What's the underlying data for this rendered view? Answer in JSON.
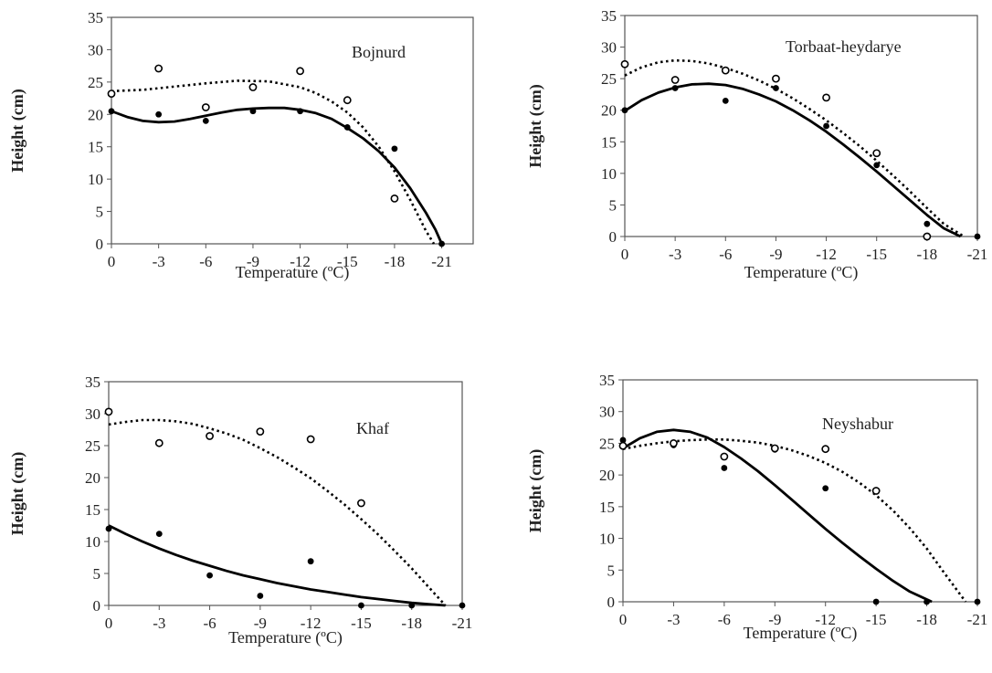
{
  "figure": {
    "xtick_labels": [
      "0",
      "-3",
      "-6",
      "-9",
      "-12",
      "-15",
      "-18",
      "-21"
    ],
    "ytick_labels": [
      "0",
      "5",
      "10",
      "15",
      "20",
      "25",
      "30",
      "35"
    ]
  },
  "chart_data": [
    {
      "type": "scatter",
      "title": "Bojnurd",
      "xlabel": "Temperature (ºC)",
      "ylabel": "Height  (cm)",
      "xlim": [
        0,
        -23
      ],
      "ylim": [
        0,
        35
      ],
      "xticks": [
        0,
        -3,
        -6,
        -9,
        -12,
        -15,
        -18,
        -21
      ],
      "yticks": [
        0,
        5,
        10,
        15,
        20,
        25,
        30,
        35
      ],
      "series": [
        {
          "marker": "filled",
          "line": "solid",
          "points": [
            [
              0,
              20.5
            ],
            [
              -3,
              20
            ],
            [
              -6,
              19
            ],
            [
              -9,
              20.5
            ],
            [
              -12,
              20.5
            ],
            [
              -15,
              18
            ],
            [
              -18,
              14.7
            ],
            [
              -21,
              0
            ]
          ],
          "fit": [
            [
              0,
              20.5
            ],
            [
              -1,
              19.6
            ],
            [
              -2,
              19
            ],
            [
              -3,
              18.8
            ],
            [
              -4,
              18.9
            ],
            [
              -5,
              19.3
            ],
            [
              -6,
              19.8
            ],
            [
              -7,
              20.3
            ],
            [
              -8,
              20.7
            ],
            [
              -9,
              20.9
            ],
            [
              -10,
              21
            ],
            [
              -11,
              21
            ],
            [
              -12,
              20.7
            ],
            [
              -13,
              20.2
            ],
            [
              -14,
              19.3
            ],
            [
              -15,
              17.9
            ],
            [
              -16,
              16.3
            ],
            [
              -17,
              14.3
            ],
            [
              -18,
              11.8
            ],
            [
              -19,
              8.6
            ],
            [
              -20,
              4.8
            ],
            [
              -20.6,
              2.2
            ],
            [
              -21,
              0
            ]
          ]
        },
        {
          "marker": "open",
          "line": "dotted",
          "points": [
            [
              0,
              23.2
            ],
            [
              -3,
              27.1
            ],
            [
              -6,
              21.1
            ],
            [
              -9,
              24.2
            ],
            [
              -12,
              26.7
            ],
            [
              -15,
              22.2
            ],
            [
              -18,
              7
            ]
          ],
          "fit": [
            [
              0,
              23.6
            ],
            [
              -2,
              23.8
            ],
            [
              -4,
              24.3
            ],
            [
              -6,
              24.8
            ],
            [
              -8,
              25.2
            ],
            [
              -10,
              25.1
            ],
            [
              -12,
              24.2
            ],
            [
              -13,
              23.3
            ],
            [
              -14,
              22
            ],
            [
              -15,
              20.3
            ],
            [
              -16,
              18
            ],
            [
              -17,
              15
            ],
            [
              -18,
              11.2
            ],
            [
              -19,
              6.8
            ],
            [
              -20,
              2
            ],
            [
              -20.5,
              0
            ]
          ]
        }
      ]
    },
    {
      "type": "scatter",
      "title": "Torbaat-heydarye",
      "xlabel": "Temperature (ºC)",
      "ylabel": "Height  (cm)",
      "xlim": [
        0,
        -21
      ],
      "ylim": [
        0,
        35
      ],
      "xticks": [
        0,
        -3,
        -6,
        -9,
        -12,
        -15,
        -18,
        -21
      ],
      "yticks": [
        0,
        5,
        10,
        15,
        20,
        25,
        30,
        35
      ],
      "series": [
        {
          "marker": "filled",
          "line": "solid",
          "points": [
            [
              0,
              20
            ],
            [
              -3,
              23.5
            ],
            [
              -6,
              21.5
            ],
            [
              -9,
              23.5
            ],
            [
              -12,
              17.5
            ],
            [
              -15,
              11.3
            ],
            [
              -18,
              2
            ],
            [
              -21,
              0
            ]
          ],
          "fit": [
            [
              0,
              19.9
            ],
            [
              -1,
              21.6
            ],
            [
              -2,
              22.8
            ],
            [
              -3,
              23.6
            ],
            [
              -4,
              24.1
            ],
            [
              -5,
              24.2
            ],
            [
              -6,
              24
            ],
            [
              -7,
              23.4
            ],
            [
              -8,
              22.5
            ],
            [
              -9,
              21.4
            ],
            [
              -10,
              20
            ],
            [
              -11,
              18.4
            ],
            [
              -12,
              16.6
            ],
            [
              -13,
              14.6
            ],
            [
              -14,
              12.5
            ],
            [
              -15,
              10.3
            ],
            [
              -16,
              8
            ],
            [
              -17,
              5.7
            ],
            [
              -18,
              3.4
            ],
            [
              -19,
              1.3
            ],
            [
              -20,
              0
            ]
          ]
        },
        {
          "marker": "open",
          "line": "dotted",
          "points": [
            [
              0,
              27.3
            ],
            [
              -3,
              24.8
            ],
            [
              -6,
              26.3
            ],
            [
              -9,
              25
            ],
            [
              -12,
              22
            ],
            [
              -15,
              13.2
            ],
            [
              -18,
              0
            ]
          ],
          "fit": [
            [
              0,
              25.5
            ],
            [
              -1,
              26.8
            ],
            [
              -2,
              27.6
            ],
            [
              -3,
              27.9
            ],
            [
              -4,
              27.8
            ],
            [
              -5,
              27.4
            ],
            [
              -6,
              26.7
            ],
            [
              -7,
              25.8
            ],
            [
              -8,
              24.7
            ],
            [
              -9,
              23.4
            ],
            [
              -10,
              21.9
            ],
            [
              -11,
              20.2
            ],
            [
              -12,
              18.4
            ],
            [
              -13,
              16.4
            ],
            [
              -14,
              14.3
            ],
            [
              -15,
              12
            ],
            [
              -16,
              9.6
            ],
            [
              -17,
              7.1
            ],
            [
              -18,
              4.5
            ],
            [
              -19,
              2
            ],
            [
              -20.2,
              0
            ]
          ]
        }
      ]
    },
    {
      "type": "scatter",
      "title": "Khaf",
      "xlabel": "Temperature (ºC)",
      "ylabel": "Height  (cm)",
      "xlim": [
        0,
        -21
      ],
      "ylim": [
        0,
        35
      ],
      "xticks": [
        0,
        -3,
        -6,
        -9,
        -12,
        -15,
        -18,
        -21
      ],
      "yticks": [
        0,
        5,
        10,
        15,
        20,
        25,
        30,
        35
      ],
      "series": [
        {
          "marker": "filled",
          "line": "solid",
          "points": [
            [
              0,
              12
            ],
            [
              -3,
              11.2
            ],
            [
              -6,
              4.7
            ],
            [
              -9,
              1.5
            ],
            [
              -12,
              6.9
            ],
            [
              -15,
              0
            ],
            [
              -18,
              0
            ],
            [
              -21,
              0
            ]
          ],
          "fit": [
            [
              0,
              12.5
            ],
            [
              -1,
              11.2
            ],
            [
              -2,
              10
            ],
            [
              -3,
              8.9
            ],
            [
              -4,
              7.9
            ],
            [
              -5,
              7
            ],
            [
              -6,
              6.2
            ],
            [
              -7,
              5.4
            ],
            [
              -8,
              4.7
            ],
            [
              -9,
              4.1
            ],
            [
              -10,
              3.5
            ],
            [
              -11,
              3
            ],
            [
              -12,
              2.5
            ],
            [
              -13,
              2.1
            ],
            [
              -14,
              1.7
            ],
            [
              -15,
              1.3
            ],
            [
              -16,
              1
            ],
            [
              -17,
              0.7
            ],
            [
              -18,
              0.4
            ],
            [
              -19,
              0.2
            ],
            [
              -20,
              0
            ]
          ]
        },
        {
          "marker": "open",
          "line": "dotted",
          "points": [
            [
              0,
              30.3
            ],
            [
              -3,
              25.4
            ],
            [
              -6,
              26.5
            ],
            [
              -9,
              27.2
            ],
            [
              -12,
              26
            ],
            [
              -15,
              16
            ]
          ],
          "fit": [
            [
              0,
              28.3
            ],
            [
              -1,
              28.7
            ],
            [
              -2,
              29
            ],
            [
              -3,
              29
            ],
            [
              -4,
              28.8
            ],
            [
              -5,
              28.4
            ],
            [
              -6,
              27.7
            ],
            [
              -7,
              26.9
            ],
            [
              -8,
              25.9
            ],
            [
              -9,
              24.6
            ],
            [
              -10,
              23.2
            ],
            [
              -11,
              21.6
            ],
            [
              -12,
              19.9
            ],
            [
              -13,
              17.9
            ],
            [
              -14,
              15.8
            ],
            [
              -15,
              13.5
            ],
            [
              -16,
              11.1
            ],
            [
              -17,
              8.5
            ],
            [
              -18,
              5.8
            ],
            [
              -19,
              2.9
            ],
            [
              -20,
              0
            ]
          ]
        }
      ]
    },
    {
      "type": "scatter",
      "title": "Neyshabur",
      "xlabel": "Temperature (ºC)",
      "ylabel": "Height  (cm)",
      "xlim": [
        0,
        -21
      ],
      "ylim": [
        0,
        35
      ],
      "xticks": [
        0,
        -3,
        -6,
        -9,
        -12,
        -15,
        -18,
        -21
      ],
      "yticks": [
        0,
        5,
        10,
        15,
        20,
        25,
        30,
        35
      ],
      "series": [
        {
          "marker": "filled",
          "line": "solid",
          "points": [
            [
              0,
              25.5
            ],
            [
              -3,
              24.7
            ],
            [
              -6,
              21.1
            ],
            [
              -9,
              24
            ],
            [
              -12,
              17.9
            ],
            [
              -15,
              0
            ],
            [
              -18,
              0
            ],
            [
              -21,
              0
            ]
          ],
          "fit": [
            [
              0,
              24.2
            ],
            [
              -1,
              25.8
            ],
            [
              -2,
              26.8
            ],
            [
              -3,
              27.1
            ],
            [
              -4,
              26.8
            ],
            [
              -5,
              25.9
            ],
            [
              -6,
              24.4
            ],
            [
              -7,
              22.6
            ],
            [
              -8,
              20.6
            ],
            [
              -9,
              18.4
            ],
            [
              -10,
              16.1
            ],
            [
              -11,
              13.8
            ],
            [
              -12,
              11.5
            ],
            [
              -13,
              9.3
            ],
            [
              -14,
              7.2
            ],
            [
              -15,
              5.2
            ],
            [
              -16,
              3.3
            ],
            [
              -17,
              1.6
            ],
            [
              -18.3,
              0
            ]
          ]
        },
        {
          "marker": "open",
          "line": "dotted",
          "points": [
            [
              0,
              24.6
            ],
            [
              -3,
              25
            ],
            [
              -6,
              22.9
            ],
            [
              -9,
              24.2
            ],
            [
              -12,
              24.1
            ],
            [
              -15,
              17.5
            ]
          ],
          "fit": [
            [
              0,
              24.1
            ],
            [
              -1,
              24.6
            ],
            [
              -2,
              25
            ],
            [
              -3,
              25.3
            ],
            [
              -4,
              25.5
            ],
            [
              -5,
              25.6
            ],
            [
              -6,
              25.6
            ],
            [
              -7,
              25.4
            ],
            [
              -8,
              25.1
            ],
            [
              -9,
              24.6
            ],
            [
              -10,
              23.9
            ],
            [
              -11,
              23
            ],
            [
              -12,
              21.9
            ],
            [
              -13,
              20.5
            ],
            [
              -14,
              18.8
            ],
            [
              -15,
              16.8
            ],
            [
              -16,
              14.4
            ],
            [
              -17,
              11.6
            ],
            [
              -18,
              8.4
            ],
            [
              -19,
              4.7
            ],
            [
              -20.3,
              0
            ]
          ]
        }
      ]
    }
  ]
}
